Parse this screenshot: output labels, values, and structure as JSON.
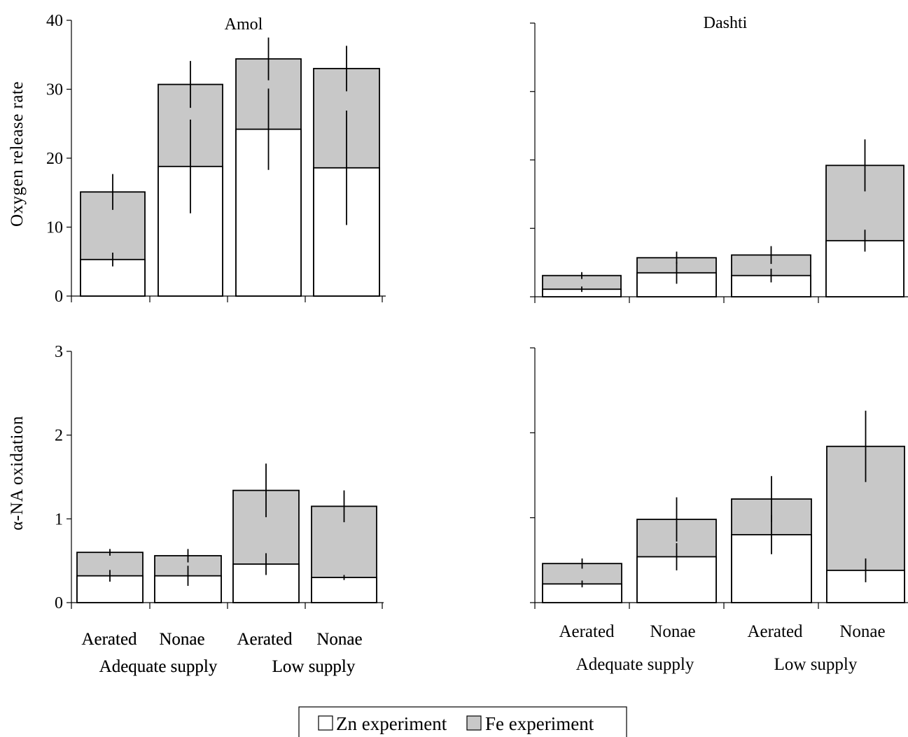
{
  "colors": {
    "zn": "#ffffff",
    "fe": "#c8c8c8",
    "stroke": "#000000"
  },
  "legend": {
    "items": [
      {
        "label": "Zn experiment",
        "color": "#ffffff"
      },
      {
        "label": "Fe experiment",
        "color": "#c8c8c8"
      }
    ]
  },
  "chart_data": [
    {
      "type": "bar",
      "title": "Amol",
      "ylabel": "Oxygen release rate",
      "ylim": [
        0,
        40
      ],
      "yticks": [
        0,
        10,
        20,
        30,
        40
      ],
      "show_tick_labels": true,
      "categories": [
        "Aerated",
        "Nonae",
        "Aerated",
        "Nonae"
      ],
      "groups": [
        "Adequate supply",
        "Low supply"
      ],
      "series": [
        {
          "name": "Zn experiment",
          "values": [
            5.3,
            18.8,
            24.2,
            18.6
          ],
          "errors": [
            1.0,
            6.8,
            5.9,
            8.3
          ]
        },
        {
          "name": "Fe experiment",
          "values": [
            15.1,
            30.7,
            34.4,
            33.0
          ],
          "errors": [
            2.6,
            3.4,
            3.1,
            3.3
          ]
        }
      ]
    },
    {
      "type": "bar",
      "title": "Dashti",
      "ylabel": "",
      "ylim": [
        0,
        40
      ],
      "yticks": [
        0,
        10,
        20,
        30,
        40
      ],
      "show_tick_labels": false,
      "categories": [
        "Aerated",
        "Nonae",
        "Aerated",
        "Nonae"
      ],
      "groups": [
        "Adequate supply",
        "Low supply"
      ],
      "series": [
        {
          "name": "Zn experiment",
          "values": [
            1.1,
            3.5,
            3.1,
            8.2
          ],
          "errors": [
            0.4,
            1.6,
            1.0,
            1.6
          ]
        },
        {
          "name": "Fe experiment",
          "values": [
            3.1,
            5.7,
            6.1,
            19.2
          ],
          "errors": [
            0.5,
            0.9,
            1.3,
            3.8
          ]
        }
      ]
    },
    {
      "type": "bar",
      "title": "",
      "ylabel": "α-NA oxidation",
      "ylim": [
        0,
        3
      ],
      "yticks": [
        0,
        1,
        2,
        3
      ],
      "show_tick_labels": true,
      "categories": [
        "Aerated",
        "Nonae",
        "Aerated",
        "Nonae"
      ],
      "groups": [
        "Adequate supply",
        "Low supply"
      ],
      "series": [
        {
          "name": "Zn experiment",
          "values": [
            0.32,
            0.32,
            0.46,
            0.3
          ],
          "errors": [
            0.07,
            0.12,
            0.13,
            0.03
          ]
        },
        {
          "name": "Fe experiment",
          "values": [
            0.6,
            0.56,
            1.34,
            1.15
          ],
          "errors": [
            0.04,
            0.08,
            0.32,
            0.19
          ]
        }
      ]
    },
    {
      "type": "bar",
      "title": "",
      "ylabel": "",
      "ylim": [
        0,
        3
      ],
      "yticks": [
        0,
        1,
        2,
        3
      ],
      "show_tick_labels": false,
      "categories": [
        "Aerated",
        "Nonae",
        "Aerated",
        "Nonae"
      ],
      "groups": [
        "Adequate supply",
        "Low supply"
      ],
      "series": [
        {
          "name": "Zn experiment",
          "values": [
            0.22,
            0.54,
            0.8,
            0.38
          ],
          "errors": [
            0.04,
            0.16,
            0.23,
            0.14
          ]
        },
        {
          "name": "Fe experiment",
          "values": [
            0.46,
            0.98,
            1.22,
            1.84
          ],
          "errors": [
            0.06,
            0.26,
            0.27,
            0.42
          ]
        }
      ]
    }
  ]
}
